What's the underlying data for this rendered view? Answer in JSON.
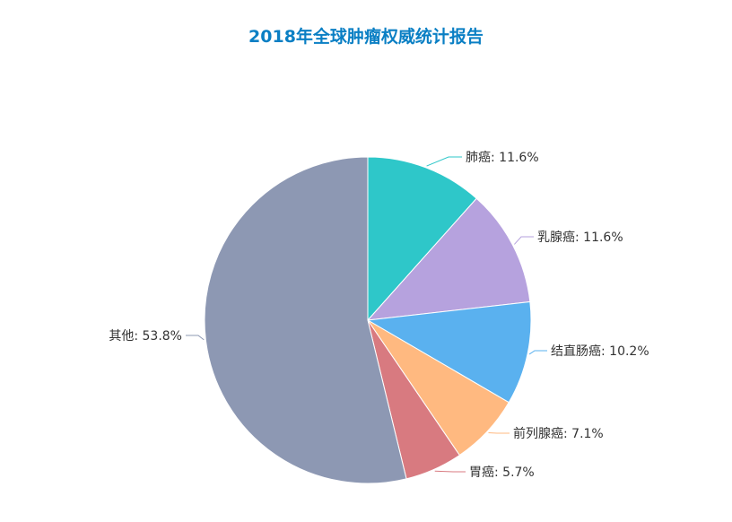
{
  "title": "2018年全球肿瘤权威统计报告",
  "chart_data": {
    "type": "pie",
    "title": "2018年全球肿瘤权威统计报告",
    "slices": [
      {
        "name": "肺癌",
        "value": 11.6,
        "label": "肺癌: 11.6%",
        "color": "#2ec7c9"
      },
      {
        "name": "乳腺癌",
        "value": 11.6,
        "label": "乳腺癌: 11.6%",
        "color": "#b6a2de"
      },
      {
        "name": "结直肠癌",
        "value": 10.2,
        "label": "结直肠癌: 10.2%",
        "color": "#5ab1ef"
      },
      {
        "name": "前列腺癌",
        "value": 7.1,
        "label": "前列腺癌: 7.1%",
        "color": "#ffb980"
      },
      {
        "name": "胃癌",
        "value": 5.7,
        "label": "胃癌: 5.7%",
        "color": "#d87a80"
      },
      {
        "name": "其他",
        "value": 53.8,
        "label": "其他: 53.8%",
        "color": "#8d98b3"
      }
    ]
  }
}
